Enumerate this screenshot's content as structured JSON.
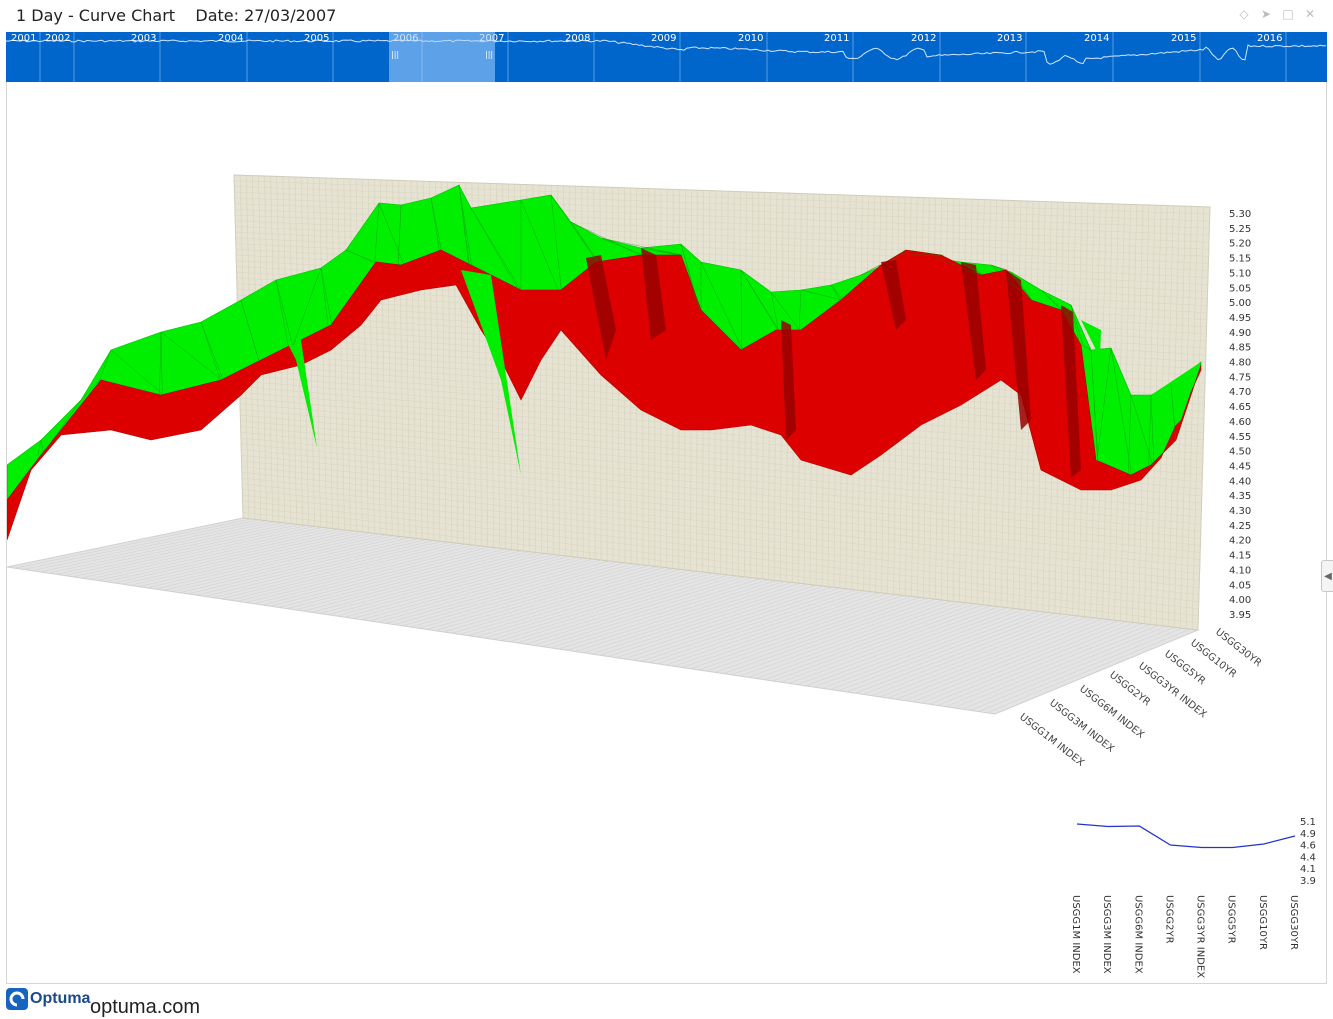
{
  "window": {
    "title": "1 Day - Curve Chart",
    "date_label": "Date: 27/03/2007"
  },
  "controls": {
    "link_icon": "diamond-icon",
    "pin_icon": "pin-icon",
    "maximize_icon": "maximize-icon",
    "close_icon": "close-icon",
    "side_toggle_icon": "chevron-left-icon"
  },
  "timeline": {
    "years": [
      "2001",
      "2002",
      "2003",
      "2004",
      "2005",
      "2006",
      "2007",
      "2008",
      "2009",
      "2010",
      "2011",
      "2012",
      "2013",
      "2014",
      "2015",
      "2016"
    ],
    "selected_range": [
      "2006",
      "2007"
    ],
    "background_color": "#0066cc"
  },
  "chart_data": [
    {
      "type": "area",
      "view": "3d-surface",
      "series_axis_labels": [
        "USGG1M INDEX",
        "USGG3M INDEX",
        "USGG6M INDEX",
        "USGG2YR",
        "USGG3YR INDEX",
        "USGG5YR",
        "USGG10YR",
        "USGG30YR"
      ],
      "z_tick_labels": [
        "5.30",
        "5.25",
        "5.20",
        "5.15",
        "5.10",
        "5.05",
        "5.00",
        "4.95",
        "4.90",
        "4.85",
        "4.80",
        "4.75",
        "4.70",
        "4.65",
        "4.60",
        "4.55",
        "4.50",
        "4.45",
        "4.40",
        "4.35",
        "4.30",
        "4.25",
        "4.20",
        "4.15",
        "4.10",
        "4.05",
        "4.00",
        "3.95"
      ],
      "z_range": [
        3.95,
        5.3
      ],
      "colors": {
        "up": "#00ee00",
        "down": "#dd0000",
        "down_dark": "#990000",
        "back_wall": "#e6e3d3",
        "floor": "#e4e4e4"
      }
    },
    {
      "type": "line",
      "categories": [
        "USGG1M INDEX",
        "USGG3M INDEX",
        "USGG6M INDEX",
        "USGG2YR",
        "USGG3YR INDEX",
        "USGG5YR",
        "USGG10YR",
        "USGG30YR"
      ],
      "values": [
        5.02,
        4.97,
        4.98,
        4.6,
        4.55,
        4.55,
        4.62,
        4.78
      ],
      "y_tick_labels": [
        "5.1",
        "4.9",
        "4.6",
        "4.4",
        "4.1",
        "3.9"
      ],
      "ylim": [
        3.9,
        5.1
      ],
      "color": "#2233cc"
    }
  ],
  "footer": {
    "logo_text": "Optuma",
    "site": "optuma.com"
  }
}
